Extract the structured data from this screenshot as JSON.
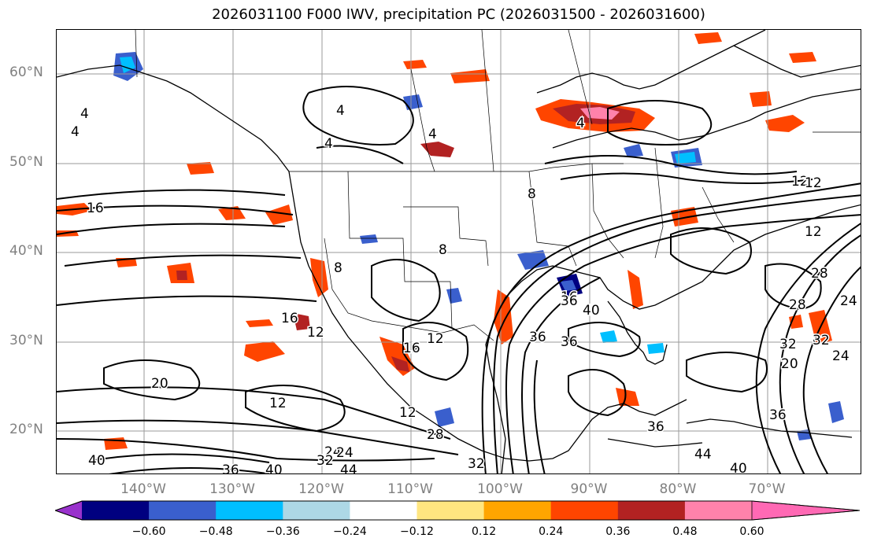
{
  "title": "2026031100 F000 IWV, precipitation PC (2026031500 - 2026031600)",
  "lat_labels": [
    "60°N",
    "50°N",
    "40°N",
    "30°N",
    "20°N"
  ],
  "lon_labels": [
    "140°W",
    "130°W",
    "120°W",
    "110°W",
    "100°W",
    "90°W",
    "80°W",
    "70°W"
  ],
  "contour_labels": [
    "4",
    "4",
    "4",
    "4",
    "4",
    "4",
    "16",
    "8",
    "8",
    "8",
    "12",
    "12",
    "16",
    "16",
    "12",
    "12",
    "12",
    "20",
    "12",
    "28",
    "16",
    "24",
    "28",
    "32",
    "36",
    "40",
    "36",
    "36",
    "36",
    "24",
    "40",
    "36",
    "40",
    "32",
    "24",
    "44",
    "32",
    "12",
    "28",
    "20",
    "24",
    "32",
    "36",
    "44",
    "40",
    "12"
  ],
  "colorbar": {
    "ticks": [
      "−0.60",
      "−0.48",
      "−0.36",
      "−0.24",
      "−0.12",
      "0.12",
      "0.24",
      "0.36",
      "0.48",
      "0.60"
    ],
    "colors": [
      "#9932cc",
      "#000080",
      "#3a5fcd",
      "#00bfff",
      "#add8e6",
      "#ffffff",
      "#ffe680",
      "#ffa500",
      "#ff4500",
      "#b22222",
      "#ff82ab",
      "#ff69b4"
    ]
  }
}
